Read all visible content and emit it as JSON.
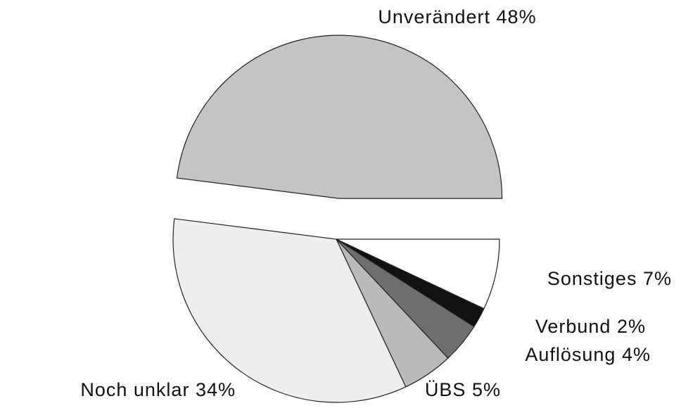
{
  "chart_data": {
    "type": "pie",
    "categories": [
      "Unverändert",
      "Sonstiges",
      "Verbund",
      "Auflösung",
      "ÜBS",
      "Noch unklar"
    ],
    "values": [
      48,
      7,
      2,
      4,
      5,
      34
    ],
    "value_labels": [
      "48%",
      "7%",
      "2%",
      "4%",
      "5%",
      "34%"
    ],
    "colors": [
      "#c4c4c4",
      "#ffffff",
      "#111111",
      "#6e6e6e",
      "#bababa",
      "#eeeeee"
    ]
  }
}
